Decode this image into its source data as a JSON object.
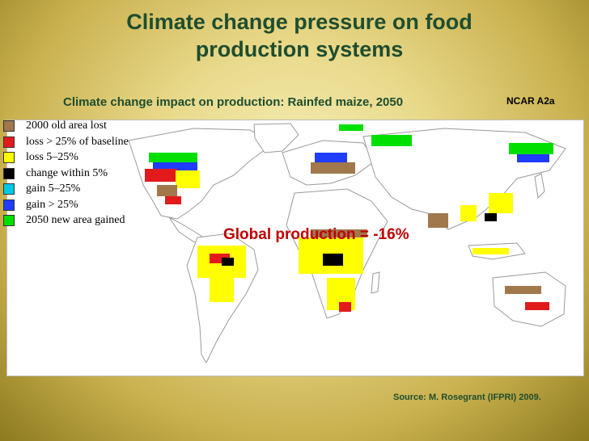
{
  "title_line1": "Climate change pressure on food",
  "title_line2": "production systems",
  "subtitle": "Climate change impact on production: Rainfed maize, 2050",
  "scenario_label": "NCAR A2a",
  "global_production": "Global production = -16%",
  "source": "Source: M. Rosegrant (IFPRI) 2009.",
  "legend": [
    {
      "label": "2000 old area lost",
      "color": "#a0784c"
    },
    {
      "label": "loss > 25% of baseline",
      "color": "#e31a1c"
    },
    {
      "label": "loss 5–25%",
      "color": "#ffff00"
    },
    {
      "label": "change within 5%",
      "color": "#000000"
    },
    {
      "label": "gain 5–25%",
      "color": "#00c8e6"
    },
    {
      "label": "gain > 25%",
      "color": "#1f3cff"
    },
    {
      "label": "2050 new area gained",
      "color": "#00e000"
    }
  ],
  "colors": {
    "title": "#1f4d2e",
    "highlight": "#c00000",
    "land_outline": "#9a9a9a"
  }
}
